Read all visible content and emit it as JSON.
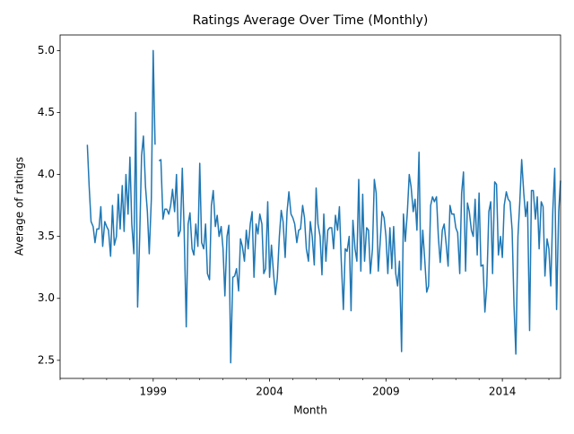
{
  "chart_data": {
    "type": "line",
    "title": "Ratings Average Over Time (Monthly)",
    "xlabel": "Month",
    "ylabel": "Average of ratings",
    "xlim": [
      1995,
      2016.5
    ],
    "xticks": [
      1999,
      2004,
      2009,
      2014
    ],
    "xminorticks": [
      1995,
      1996,
      1997,
      1998,
      2000,
      2001,
      2002,
      2003,
      2005,
      2006,
      2007,
      2008,
      2010,
      2011,
      2012,
      2013,
      2015,
      2016
    ],
    "ylim": [
      2.354,
      5.126
    ],
    "yticks": [
      2.5,
      {
        "value": 3,
        "label": "3.0"
      },
      3.5,
      {
        "value": 4,
        "label": "4.0"
      },
      4.5,
      {
        "value": 5,
        "label": "5.0"
      }
    ],
    "x": [
      1996.17,
      1996.25,
      1996.33,
      1996.42,
      1996.5,
      1996.58,
      1996.67,
      1996.75,
      1996.83,
      1996.92,
      1997,
      1997.08,
      1997.17,
      1997.25,
      1997.33,
      1997.42,
      1997.5,
      1997.58,
      1997.67,
      1997.75,
      1997.83,
      1997.92,
      1998,
      1998.08,
      1998.17,
      1998.25,
      1998.33,
      1998.42,
      1998.5,
      1998.58,
      1998.67,
      1998.75,
      1998.83,
      1998.92,
      1999,
      1999.08,
      1999.17,
      1999.25,
      1999.33,
      1999.42,
      1999.5,
      1999.58,
      1999.67,
      1999.75,
      1999.83,
      1999.92,
      2000,
      2000.08,
      2000.17,
      2000.25,
      2000.33,
      2000.42,
      2000.5,
      2000.58,
      2000.67,
      2000.75,
      2000.83,
      2000.92,
      2001,
      2001.08,
      2001.17,
      2001.25,
      2001.33,
      2001.42,
      2001.5,
      2001.58,
      2001.67,
      2001.75,
      2001.83,
      2001.92,
      2002,
      2002.08,
      2002.17,
      2002.25,
      2002.33,
      2002.42,
      2002.5,
      2002.58,
      2002.67,
      2002.75,
      2002.83,
      2002.92,
      2003,
      2003.08,
      2003.17,
      2003.25,
      2003.33,
      2003.42,
      2003.5,
      2003.58,
      2003.67,
      2003.75,
      2003.83,
      2003.92,
      2004,
      2004.08,
      2004.17,
      2004.25,
      2004.33,
      2004.42,
      2004.5,
      2004.58,
      2004.67,
      2004.75,
      2004.83,
      2004.92,
      2005,
      2005.08,
      2005.17,
      2005.25,
      2005.33,
      2005.42,
      2005.5,
      2005.58,
      2005.67,
      2005.75,
      2005.83,
      2005.92,
      2006,
      2006.08,
      2006.17,
      2006.25,
      2006.33,
      2006.42,
      2006.5,
      2006.58,
      2006.67,
      2006.75,
      2006.83,
      2006.92,
      2007,
      2007.08,
      2007.17,
      2007.25,
      2007.33,
      2007.42,
      2007.5,
      2007.58,
      2007.67,
      2007.75,
      2007.83,
      2007.92,
      2008,
      2008.08,
      2008.17,
      2008.25,
      2008.33,
      2008.42,
      2008.5,
      2008.58,
      2008.67,
      2008.75,
      2008.83,
      2008.92,
      2009,
      2009.08,
      2009.17,
      2009.25,
      2009.33,
      2009.42,
      2009.5,
      2009.58,
      2009.67,
      2009.75,
      2009.83,
      2009.92,
      2010,
      2010.08,
      2010.17,
      2010.25,
      2010.33,
      2010.42,
      2010.5,
      2010.58,
      2010.67,
      2010.75,
      2010.83,
      2010.92,
      2011,
      2011.08,
      2011.17,
      2011.25,
      2011.33,
      2011.42,
      2011.5,
      2011.58,
      2011.67,
      2011.75,
      2011.83,
      2011.92,
      2012,
      2012.08,
      2012.17,
      2012.25,
      2012.33,
      2012.42,
      2012.5,
      2012.58,
      2012.67,
      2012.75,
      2012.83,
      2012.92,
      2013,
      2013.08,
      2013.17,
      2013.25,
      2013.33,
      2013.42,
      2013.5,
      2013.58,
      2013.67,
      2013.75,
      2013.83,
      2013.92,
      2014,
      2014.08,
      2014.17,
      2014.25,
      2014.33,
      2014.42,
      2014.5,
      2014.58,
      2014.67,
      2014.75,
      2014.83,
      2014.92,
      2015,
      2015.08,
      2015.17,
      2015.25,
      2015.33,
      2015.42,
      2015.5,
      2015.58,
      2015.67,
      2015.75,
      2015.83,
      2015.92,
      2016,
      2016.08,
      2016.17,
      2016.25,
      2016.33,
      2016.42,
      2016.5
    ],
    "series": [
      {
        "color": "#1f77b4",
        "values": [
          4.24,
          3.9,
          3.62,
          3.58,
          3.45,
          3.56,
          3.56,
          3.74,
          3.42,
          3.62,
          3.58,
          3.55,
          3.34,
          3.75,
          3.43,
          3.5,
          3.84,
          3.56,
          3.91,
          3.54,
          4.0,
          3.68,
          4.14,
          3.6,
          3.36,
          4.5,
          2.93,
          3.5,
          4.15,
          4.31,
          3.9,
          3.7,
          3.36,
          3.8,
          5.0,
          4.24,
          null,
          4.11,
          4.12,
          3.64,
          3.72,
          3.72,
          3.68,
          3.75,
          3.88,
          3.7,
          4.0,
          3.5,
          3.55,
          4.05,
          3.55,
          2.77,
          3.6,
          3.69,
          3.4,
          3.35,
          3.6,
          3.42,
          4.09,
          3.45,
          3.4,
          3.6,
          3.2,
          3.15,
          3.75,
          3.87,
          3.58,
          3.67,
          3.5,
          3.58,
          3.4,
          3.02,
          3.5,
          3.59,
          2.48,
          3.17,
          3.18,
          3.24,
          3.06,
          3.48,
          3.42,
          3.3,
          3.55,
          3.4,
          3.6,
          3.7,
          3.17,
          3.6,
          3.52,
          3.68,
          3.6,
          3.2,
          3.24,
          3.78,
          3.17,
          3.43,
          3.2,
          3.03,
          3.16,
          3.5,
          3.71,
          3.62,
          3.33,
          3.7,
          3.86,
          3.68,
          3.65,
          3.6,
          3.45,
          3.55,
          3.56,
          3.75,
          3.65,
          3.4,
          3.3,
          3.62,
          3.5,
          3.27,
          3.89,
          3.6,
          3.5,
          3.19,
          3.68,
          3.3,
          3.55,
          3.57,
          3.57,
          3.4,
          3.67,
          3.55,
          3.74,
          3.3,
          2.91,
          3.4,
          3.38,
          3.5,
          2.9,
          3.63,
          3.4,
          3.3,
          3.96,
          3.22,
          3.84,
          3.3,
          3.57,
          3.55,
          3.2,
          3.4,
          3.96,
          3.85,
          3.22,
          3.45,
          3.7,
          3.65,
          3.5,
          3.2,
          3.57,
          3.24,
          3.58,
          3.2,
          3.1,
          3.3,
          2.57,
          3.68,
          3.46,
          3.7,
          4.0,
          3.9,
          3.7,
          3.8,
          3.55,
          4.18,
          3.23,
          3.55,
          3.3,
          3.05,
          3.1,
          3.75,
          3.82,
          3.78,
          3.82,
          3.5,
          3.29,
          3.55,
          3.6,
          3.45,
          3.26,
          3.75,
          3.68,
          3.68,
          3.57,
          3.53,
          3.2,
          3.85,
          4.02,
          3.22,
          3.77,
          3.7,
          3.55,
          3.5,
          3.8,
          3.35,
          3.85,
          3.26,
          3.27,
          2.89,
          3.1,
          3.7,
          3.78,
          3.2,
          3.94,
          3.92,
          3.35,
          3.5,
          3.33,
          3.75,
          3.86,
          3.8,
          3.78,
          3.55,
          2.95,
          2.55,
          3.5,
          3.78,
          4.12,
          3.85,
          3.66,
          3.78,
          2.74,
          3.87,
          3.87,
          3.64,
          3.82,
          3.4,
          3.78,
          3.74,
          3.18,
          3.48,
          3.4,
          3.1,
          3.72,
          4.05,
          2.91,
          3.7,
          3.95
        ]
      }
    ]
  }
}
